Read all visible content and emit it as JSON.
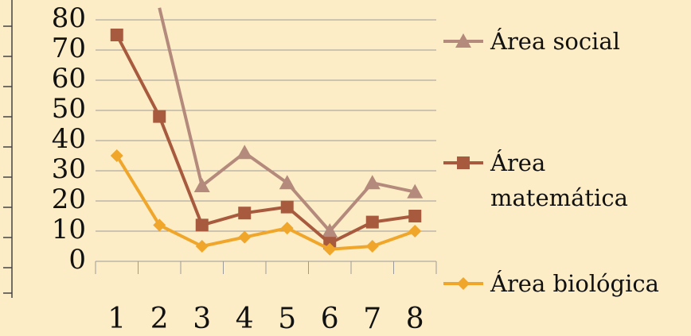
{
  "chart_data": {
    "type": "line",
    "x": [
      "1",
      "2",
      "3",
      "4",
      "5",
      "6",
      "7",
      "8"
    ],
    "yticks": [
      "0",
      "10",
      "20",
      "30",
      "40",
      "50",
      "60",
      "70",
      "80"
    ],
    "ylim": [
      0,
      80
    ],
    "grid": true,
    "legend_position": "right",
    "series": [
      {
        "name": "Área social",
        "name_lines": [
          "Área social"
        ],
        "color": "#b48a7c",
        "marker": "triangle",
        "values": [
          null,
          84,
          25,
          36,
          26,
          10,
          26,
          23
        ]
      },
      {
        "name": "Área matemática",
        "name_lines": [
          "Área",
          "matemática"
        ],
        "color": "#a85a3e",
        "marker": "square",
        "values": [
          75,
          48,
          12,
          16,
          18,
          6,
          13,
          15
        ]
      },
      {
        "name": "Área biológica",
        "name_lines": [
          "Área biológica"
        ],
        "color": "#f0a62a",
        "marker": "diamond",
        "values": [
          35,
          12,
          5,
          8,
          11,
          4,
          5,
          10
        ]
      }
    ]
  }
}
